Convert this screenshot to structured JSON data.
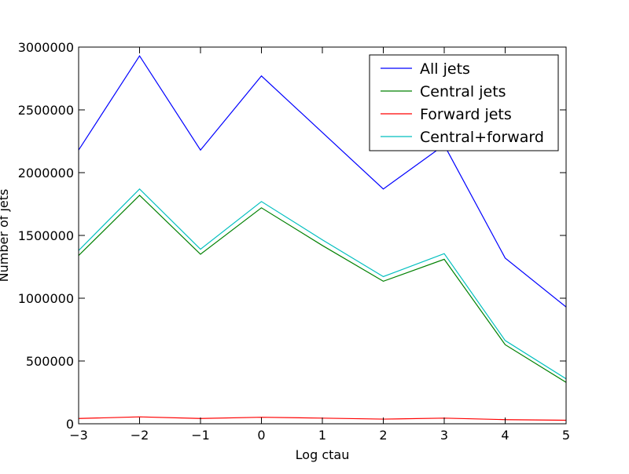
{
  "chart_data": {
    "type": "line",
    "xlabel": "Log ctau",
    "ylabel": "Number of jets",
    "xlim": [
      -3,
      5
    ],
    "ylim": [
      0,
      3000000
    ],
    "x": [
      -3,
      -2,
      -1,
      0,
      1,
      2,
      3,
      4,
      5
    ],
    "x_ticks": [
      {
        "value": -3,
        "label": "−3"
      },
      {
        "value": -2,
        "label": "−2"
      },
      {
        "value": -1,
        "label": "−1"
      },
      {
        "value": 0,
        "label": "0"
      },
      {
        "value": 1,
        "label": "1"
      },
      {
        "value": 2,
        "label": "2"
      },
      {
        "value": 3,
        "label": "3"
      },
      {
        "value": 4,
        "label": "4"
      },
      {
        "value": 5,
        "label": "5"
      }
    ],
    "y_ticks": [
      {
        "value": 0,
        "label": "0"
      },
      {
        "value": 500000,
        "label": "500000"
      },
      {
        "value": 1000000,
        "label": "1000000"
      },
      {
        "value": 1500000,
        "label": "1500000"
      },
      {
        "value": 2000000,
        "label": "2000000"
      },
      {
        "value": 2500000,
        "label": "2500000"
      },
      {
        "value": 3000000,
        "label": "3000000"
      }
    ],
    "grid": false,
    "legend_position": "top-right",
    "series": [
      {
        "name": "All jets",
        "color": "#0000ff",
        "values": [
          2180000,
          2930000,
          2180000,
          2770000,
          2320000,
          1870000,
          2220000,
          1320000,
          930000
        ]
      },
      {
        "name": "Central jets",
        "color": "#008000",
        "values": [
          1340000,
          1820000,
          1350000,
          1720000,
          1420000,
          1135000,
          1310000,
          630000,
          330000
        ]
      },
      {
        "name": "Forward jets",
        "color": "#ff0000",
        "values": [
          42000,
          55000,
          42000,
          52000,
          45000,
          37000,
          45000,
          33000,
          28000
        ]
      },
      {
        "name": "Central+forward",
        "color": "#00bfbf",
        "values": [
          1380000,
          1870000,
          1390000,
          1770000,
          1465000,
          1172000,
          1355000,
          663000,
          358000
        ]
      }
    ]
  }
}
